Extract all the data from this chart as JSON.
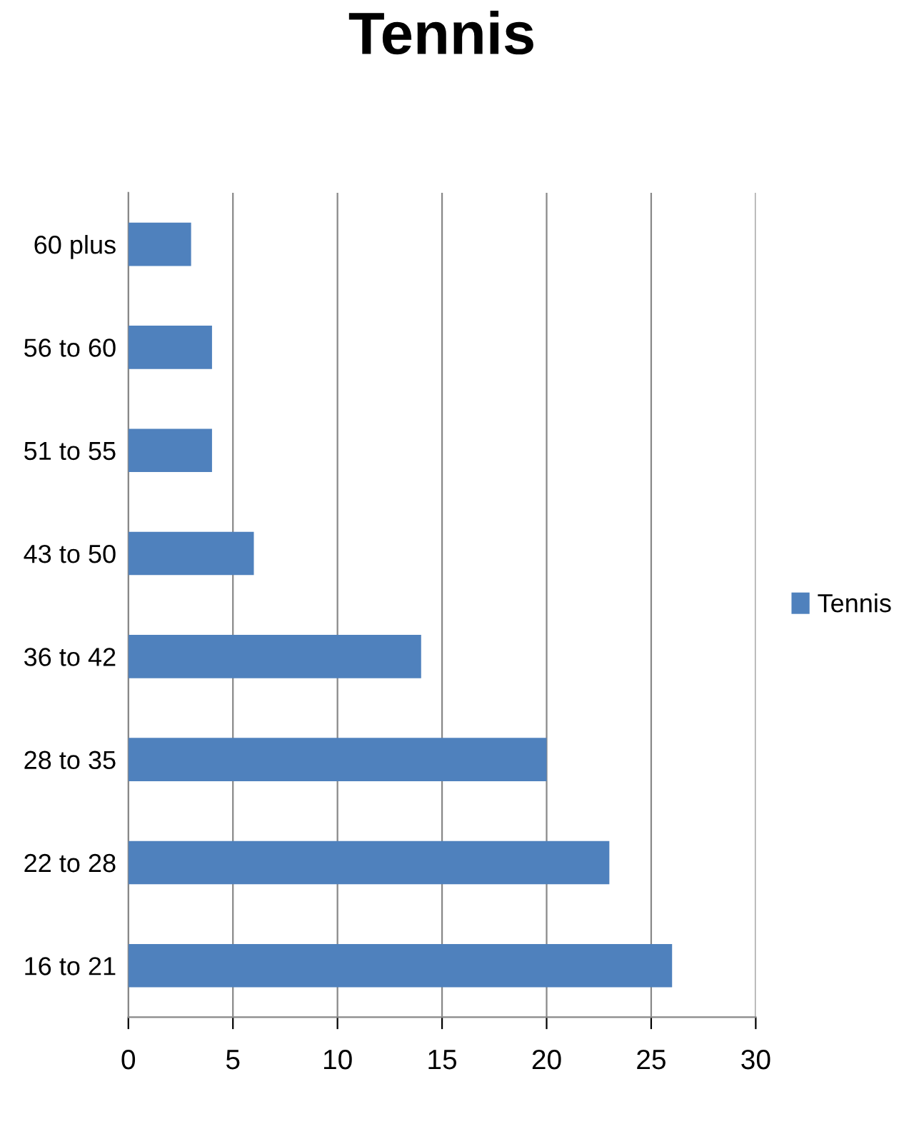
{
  "chart_data": {
    "type": "bar",
    "title": "Tennis",
    "orientation": "horizontal",
    "categories": [
      "60 plus",
      "56 to 60",
      "51 to 55",
      "43 to 50",
      "36 to 42",
      "28 to 35",
      "22 to 28",
      "16 to 21"
    ],
    "series": [
      {
        "name": "Tennis",
        "color": "#4f81bd",
        "values": [
          3,
          4,
          4,
          6,
          14,
          20,
          23,
          26
        ]
      }
    ],
    "xlim": [
      0,
      30
    ],
    "xticks": [
      0,
      5,
      10,
      15,
      20,
      25,
      30
    ],
    "grid": "x",
    "legend": "right"
  }
}
